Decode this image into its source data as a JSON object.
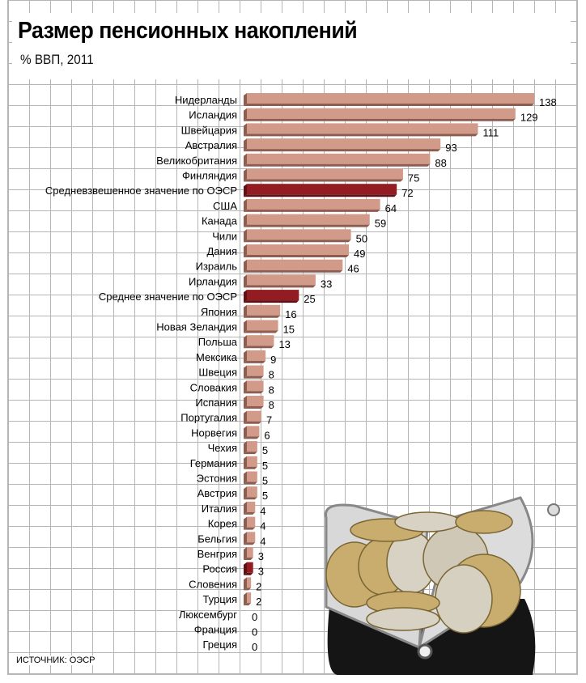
{
  "chart_data": {
    "type": "bar",
    "orientation": "horizontal",
    "title": "Размер пенсионных накоплений",
    "subtitle": "% ВВП, 2011",
    "source": "ИСТОЧНИК: ОЭСР",
    "xlim": [
      0,
      140
    ],
    "grid": true,
    "colors": {
      "bar": "#d29a89",
      "bar_shadow": "#8d5d52",
      "highlight": "#921c22",
      "highlight_shadow": "#5e1014"
    },
    "categories": [
      "Нидерланды",
      "Исландия",
      "Швейцария",
      "Австралия",
      "Великобритания",
      "Финляндия",
      "Средневзвешенное значение по ОЭСР",
      "США",
      "Канада",
      "Чили",
      "Дания",
      "Израиль",
      "Ирландия",
      "Среднее значение по ОЭСР",
      "Япония",
      "Новая Зеландия",
      "Польша",
      "Мексика",
      "Швеция",
      "Словакия",
      "Испания",
      "Португалия",
      "Норвегия",
      "Чехия",
      "Германия",
      "Эстония",
      "Австрия",
      "Италия",
      "Корея",
      "Бельгия",
      "Венгрия",
      "Россия",
      "Словения",
      "Турция",
      "Люксембург",
      "Франция",
      "Греция"
    ],
    "values": [
      138,
      129,
      111,
      93,
      88,
      75,
      72,
      64,
      59,
      50,
      49,
      46,
      33,
      25,
      16,
      15,
      13,
      9,
      8,
      8,
      8,
      7,
      6,
      5,
      5,
      5,
      5,
      4,
      4,
      4,
      3,
      3,
      2,
      2,
      0,
      0,
      0
    ],
    "highlighted": [
      "Средневзвешенное значение по ОЭСР",
      "Среднее значение по ОЭСР",
      "Россия"
    ]
  }
}
